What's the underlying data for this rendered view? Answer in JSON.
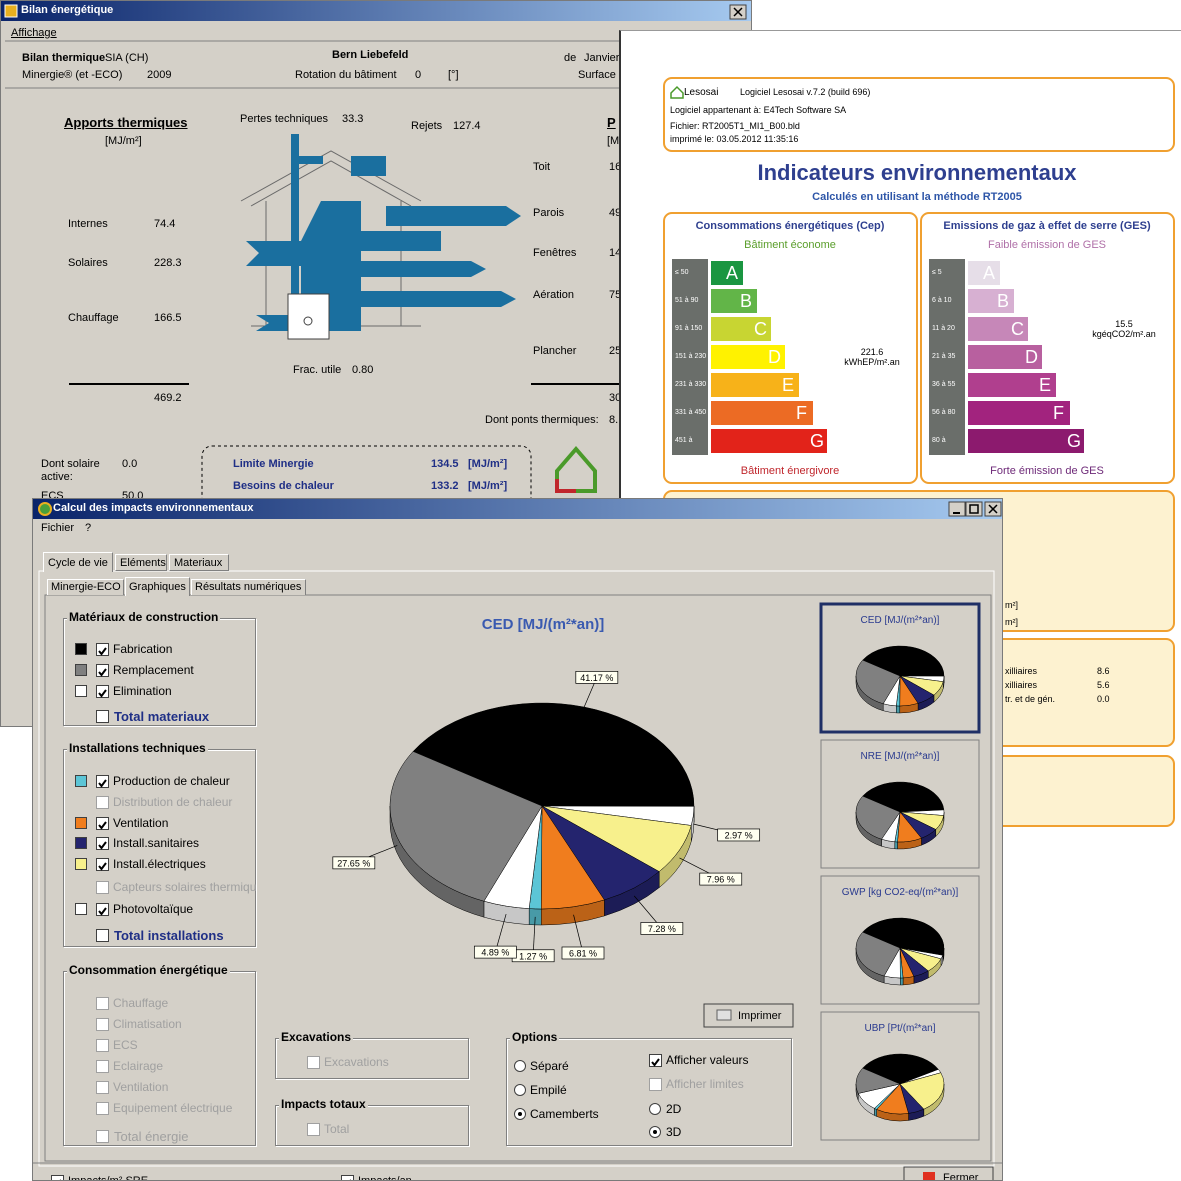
{
  "bilan_window": {
    "title": "Bilan énergétique",
    "menu": [
      "Affichage"
    ],
    "header": {
      "method_label": "Bilan thermique",
      "method": "SIA (CH)",
      "location": "Bern Liebefeld",
      "period_label": "de",
      "period": "Janvier",
      "standard_label": "Minergie® (et -ECO)",
      "standard_year": "2009",
      "rotation_label": "Rotation du bâtiment",
      "rotation": "0",
      "rotation_unit": "[°]",
      "surface_label": "Surface"
    },
    "gains": {
      "title": "Apports thermiques",
      "unit": "[MJ/m²]",
      "rows": [
        [
          "Internes",
          "74.4"
        ],
        [
          "Solaires",
          "228.3"
        ],
        [
          "Chauffage",
          "166.5"
        ]
      ],
      "total": "469.2"
    },
    "diagram": {
      "technical_losses_label": "Pertes techniques",
      "technical_losses": "33.3",
      "rejects_label": "Rejets",
      "rejects": "127.4",
      "useful_fraction_label": "Frac. utile",
      "useful_fraction": "0.80"
    },
    "losses": {
      "title": "P",
      "unit": "[M",
      "rows": [
        [
          "Toit",
          "16"
        ],
        [
          "Parois",
          "49"
        ],
        [
          "Fenêtres",
          "14"
        ],
        [
          "Aération",
          "75"
        ],
        [
          "Plancher",
          "25"
        ]
      ],
      "total": "30",
      "bridges_label": "Dont ponts thermiques:",
      "bridges": "8."
    },
    "solar": {
      "active_label": "Dont solaire active:",
      "active": "0.0",
      "ecs_label": "ECS",
      "ecs": "50.0"
    },
    "minergie": {
      "limit_label": "Limite Minergie",
      "limit": "134.5",
      "limit_unit": "[MJ/m²]",
      "need_label": "Besoins de chaleur",
      "need": "133.2",
      "need_unit": "[MJ/m²]"
    }
  },
  "report": {
    "logo": "Lesosai",
    "software": "Logiciel Lesosai v.7.2 (build 696)",
    "owner": "Logiciel appartenant à: E4Tech Software SA",
    "file": "Fichier: RT2005T1_MI1_B00.bld",
    "printed": "imprimé le: 03.05.2012 11:35:16",
    "title": "Indicateurs environnementaux",
    "subtitle": "Calculés en utilisant la méthode RT2005",
    "labels": [
      {
        "title": "Consommations énergétiques (Cep)",
        "top": "Bâtiment économe",
        "bottom": "Bâtiment énergivore",
        "ranges": [
          "≤ 50",
          "51 à 90",
          "91 à 150",
          "151 à 230",
          "231 à 330",
          "331 à 450",
          "451 à"
        ],
        "classes": [
          "A",
          "B",
          "C",
          "D",
          "E",
          "F",
          "G"
        ],
        "colors": [
          "#1a9641",
          "#62b548",
          "#c8d532",
          "#fff200",
          "#f7b219",
          "#ec6b24",
          "#e2231a"
        ],
        "top_color": "#5a9e2b",
        "bottom_color": "#c0262c",
        "value": "221.6",
        "unit": "kWhEP/m².an"
      },
      {
        "title": "Emissions de gaz à effet de serre (GES)",
        "top": "Faible émission de GES",
        "bottom": "Forte émission de GES",
        "ranges": [
          "≤ 5",
          "6 à 10",
          "11 à 20",
          "21 à 35",
          "36 à 55",
          "56 à 80",
          "80 à"
        ],
        "classes": [
          "A",
          "B",
          "C",
          "D",
          "E",
          "F",
          "G"
        ],
        "colors": [
          "#e6dee8",
          "#d7b0d2",
          "#c687b8",
          "#b8609f",
          "#b03f8e",
          "#a2237e",
          "#8c1a6e"
        ],
        "top_color": "#b070a8",
        "bottom_color": "#6e2a78",
        "value": "15.5",
        "unit": "kgéqCO2/m².an"
      }
    ],
    "fragments": [
      "m²]",
      "m²]"
    ],
    "rows": [
      [
        "xilliaires",
        "8.6"
      ],
      [
        "xilliaires",
        "5.6"
      ],
      [
        "tr. et de gén.",
        "0.0"
      ]
    ]
  },
  "impacts_window": {
    "title": "Calcul des impacts environnementaux",
    "menu": [
      "Fichier",
      "?"
    ],
    "tabs": [
      "Cycle de vie",
      "Eléments",
      "Materiaux"
    ],
    "active_tab": 0,
    "subtabs": [
      "Minergie-ECO",
      "Graphiques",
      "Résultats numériques"
    ],
    "active_subtab": 1,
    "groups": [
      {
        "title": "Matériaux de construction",
        "items": [
          {
            "label": "Fabrication",
            "color": "#000000",
            "checked": true,
            "enabled": true
          },
          {
            "label": "Remplacement",
            "color": "#808080",
            "checked": true,
            "enabled": true
          },
          {
            "label": "Elimination",
            "color": "#ffffff",
            "checked": true,
            "enabled": true
          }
        ],
        "total": {
          "label": "Total materiaux",
          "checked": false,
          "enabled": true
        }
      },
      {
        "title": "Installations techniques",
        "items": [
          {
            "label": "Production de chaleur",
            "color": "#5cc5d6",
            "checked": true,
            "enabled": true
          },
          {
            "label": "Distribution de chaleur",
            "checked": false,
            "enabled": false
          },
          {
            "label": "Ventilation",
            "color": "#f07d1e",
            "checked": true,
            "enabled": true
          },
          {
            "label": "Install.sanitaires",
            "color": "#24246e",
            "checked": true,
            "enabled": true
          },
          {
            "label": "Install.électriques",
            "color": "#f7f08c",
            "checked": true,
            "enabled": true
          },
          {
            "label": "Capteurs solaires thermiqu",
            "checked": false,
            "enabled": false
          },
          {
            "label": "Photovoltaïque",
            "color": "#ffffff",
            "checked": true,
            "enabled": true
          }
        ],
        "total": {
          "label": "Total installations",
          "checked": false,
          "enabled": true
        }
      },
      {
        "title": "Consommation énergétique",
        "items": [
          {
            "label": "Chauffage",
            "checked": false,
            "enabled": false
          },
          {
            "label": "Climatisation",
            "checked": false,
            "enabled": false
          },
          {
            "label": "ECS",
            "checked": false,
            "enabled": false
          },
          {
            "label": "Eclairage",
            "checked": false,
            "enabled": false
          },
          {
            "label": "Ventilation",
            "checked": false,
            "enabled": false
          },
          {
            "label": "Equipement électrique",
            "checked": false,
            "enabled": false
          }
        ],
        "total": {
          "label": "Total énergie",
          "checked": false,
          "enabled": false
        }
      }
    ],
    "excavations": {
      "title": "Excavations",
      "item": {
        "label": "Excavations",
        "checked": false,
        "enabled": false
      }
    },
    "totals": {
      "title": "Impacts totaux",
      "item": {
        "label": "Total",
        "checked": false,
        "enabled": false
      }
    },
    "options": {
      "title": "Options",
      "radios": [
        {
          "label": "Séparé",
          "selected": false
        },
        {
          "label": "Empilé",
          "selected": false
        },
        {
          "label": "Camemberts",
          "selected": true
        }
      ],
      "checks": [
        {
          "label": "Afficher valeurs",
          "checked": true,
          "enabled": true
        },
        {
          "label": "Afficher limites",
          "checked": false,
          "enabled": false
        }
      ],
      "views": [
        {
          "label": "2D",
          "selected": false
        },
        {
          "label": "3D",
          "selected": true
        }
      ]
    },
    "print": "Imprimer",
    "thumbnails": [
      {
        "title": "CED [MJ/(m²*an)]"
      },
      {
        "title": "NRE [MJ/(m²*an)]",
        "values": [
          40,
          3,
          8,
          7,
          9,
          1,
          5,
          27
        ]
      },
      {
        "title": "GWP [kg CO2-eq/(m²*an)]",
        "values": [
          45,
          2,
          8,
          6,
          4,
          1,
          6,
          28
        ]
      },
      {
        "title": "UBP [Pt/(m²*an]",
        "values": [
          33,
          2,
          22,
          6,
          12,
          1,
          10,
          14
        ]
      }
    ],
    "selected_thumbnail": 0,
    "footer": {
      "checks": [
        {
          "label": "Impacts/m² SRE",
          "checked": true
        },
        {
          "label": "Impacts/an",
          "checked": true
        }
      ],
      "close": "Fermer"
    }
  },
  "chart_data": {
    "type": "pie",
    "three_d": true,
    "title": "CED [MJ/(m²*an)]",
    "values": [
      41.17,
      2.97,
      7.96,
      7.28,
      6.81,
      1.27,
      4.89,
      27.65
    ],
    "value_labels": [
      "41.17 %",
      "2.97 %",
      "7.96 %",
      "7.28 %",
      "6.81 %",
      "1.27 %",
      "4.89 %",
      "27.65 %"
    ],
    "colors": [
      "#000000",
      "#ffffff",
      "#f7f08c",
      "#24246e",
      "#f07d1e",
      "#5cc5d6",
      "#ffffff",
      "#808080"
    ]
  }
}
